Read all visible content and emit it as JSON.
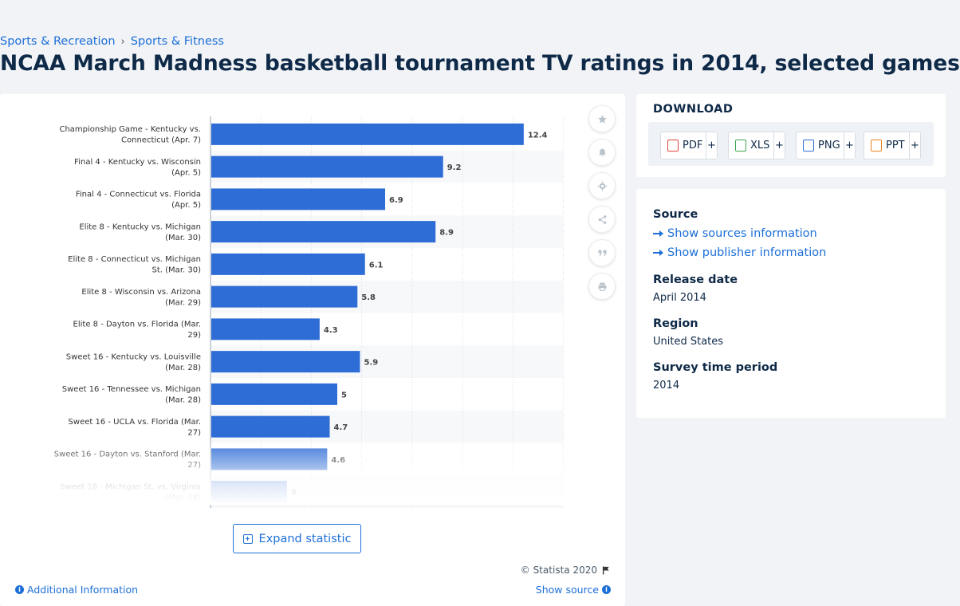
{
  "breadcrumb": {
    "items": [
      "Sports & Recreation",
      "Sports & Fitness"
    ],
    "separator": "›"
  },
  "page_title": "NCAA March Madness basketball tournament TV ratings in 2014, selected games",
  "chart_data": {
    "type": "bar",
    "orientation": "horizontal",
    "categories": [
      "Championship Game - Kentucky vs. Connecticut (Apr. 7)",
      "Final 4 - Kentucky vs. Wisconsin (Apr. 5)",
      "Final 4 - Connecticut vs. Florida (Apr. 5)",
      "Elite 8 - Kentucky vs. Michigan (Mar. 30)",
      "Elite 8 - Connecticut vs. Michigan St. (Mar. 30)",
      "Elite 8 - Wisconsin vs. Arizona (Mar. 29)",
      "Elite 8 - Dayton vs. Florida (Mar. 29)",
      "Sweet 16 - Kentucky vs. Louisville (Mar. 28)",
      "Sweet 16 - Tennessee vs. Michigan (Mar. 28)",
      "Sweet 16 - UCLA vs. Florida (Mar. 27)",
      "Sweet 16 - Dayton vs. Stanford (Mar. 27)",
      "Sweet 16 - Michigan St. vs. Virginia (Mar. 28)"
    ],
    "values": [
      12.4,
      9.2,
      6.9,
      8.9,
      6.1,
      5.8,
      4.3,
      5.9,
      5,
      4.7,
      4.6,
      3
    ],
    "value_labels": [
      "12.4",
      "9.2",
      "6.9",
      "8.9",
      "6.1",
      "5.8",
      "4.3",
      "5.9",
      "5",
      "4.7",
      "4.6",
      "3"
    ],
    "xlim": [
      0,
      14
    ],
    "grid": true,
    "bar_color": "#2f6dd6",
    "title": "",
    "xlabel": "",
    "ylabel": ""
  },
  "toolbar": {
    "icons": [
      "star-icon",
      "bell-icon",
      "gear-icon",
      "share-icon",
      "quote-icon",
      "print-icon"
    ]
  },
  "expand_label": "Expand statistic",
  "copyright": "© Statista 2020",
  "additional_info_label": "Additional Information",
  "show_source_label": "Show source",
  "download": {
    "title": "DOWNLOAD",
    "formats": [
      {
        "label": "PDF",
        "color": "#e0443a"
      },
      {
        "label": "XLS",
        "color": "#3aa34a"
      },
      {
        "label": "PNG",
        "color": "#2f6dd6"
      },
      {
        "label": "PPT",
        "color": "#e9821f"
      }
    ],
    "plus": "+"
  },
  "meta": {
    "source_label": "Source",
    "show_sources": "Show sources information",
    "show_publisher": "Show publisher information",
    "release_label": "Release date",
    "release_value": "April 2014",
    "region_label": "Region",
    "region_value": "United States",
    "survey_label": "Survey time period",
    "survey_value": "2014"
  },
  "colors": {
    "accent": "#1d6fd8",
    "title": "#0f2a48",
    "background": "#f1f3f6"
  }
}
